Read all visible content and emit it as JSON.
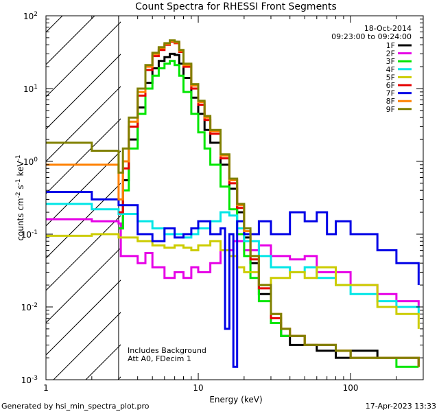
{
  "chart_data": {
    "type": "line",
    "title": "Count Spectra for RHESSI Front Segments",
    "xlabel": "Energy (keV)",
    "ylabel": "counts cm-2 s-1 keV-1",
    "xscale": "log",
    "yscale": "log",
    "xlim": [
      1,
      300
    ],
    "ylim": [
      0.001,
      100
    ],
    "x_ticks": [
      1,
      10,
      100
    ],
    "y_ticks": [
      0.001,
      0.01,
      0.1,
      1,
      10,
      100
    ],
    "y_tick_labels": [
      {
        "base": "10",
        "exp": "-3"
      },
      {
        "base": "10",
        "exp": "-2"
      },
      {
        "base": "10",
        "exp": "-1"
      },
      {
        "base": "10",
        "exp": "0"
      },
      {
        "base": "10",
        "exp": "1"
      },
      {
        "base": "10",
        "exp": "2"
      }
    ],
    "x_tick_labels": [
      "1",
      "10",
      "100"
    ],
    "date": "18-Oct-2014",
    "time_range": "09:23:00 to 09:24:00",
    "excluded_region_max_keV": 3,
    "annotations": [
      "Includes Background",
      "Att A0, FDecim 1"
    ],
    "footer_left": "Generated by hsi_min_spectra_plot.pro",
    "footer_right": "17-Apr-2023 13:33",
    "series": [
      {
        "name": "1F",
        "color": "#000000",
        "points": [
          [
            3.0,
            0.12
          ],
          [
            3.2,
            0.55
          ],
          [
            3.5,
            2.0
          ],
          [
            4.0,
            5.5
          ],
          [
            4.5,
            12
          ],
          [
            5.0,
            19
          ],
          [
            5.5,
            24
          ],
          [
            6.0,
            27
          ],
          [
            6.5,
            30
          ],
          [
            7.0,
            29
          ],
          [
            7.5,
            22
          ],
          [
            8.0,
            14
          ],
          [
            9.0,
            7.5
          ],
          [
            10.0,
            4.5
          ],
          [
            11.0,
            2.7
          ],
          [
            12.0,
            1.8
          ],
          [
            14.0,
            0.9
          ],
          [
            16.0,
            0.42
          ],
          [
            18.0,
            0.2
          ],
          [
            20.0,
            0.09
          ],
          [
            22.0,
            0.04
          ],
          [
            25.0,
            0.015
          ],
          [
            30.0,
            0.006
          ],
          [
            35.0,
            0.004
          ],
          [
            40.0,
            0.003
          ],
          [
            50.0,
            0.003
          ],
          [
            60.0,
            0.0025
          ],
          [
            80.0,
            0.002
          ],
          [
            100.0,
            0.0025
          ],
          [
            150.0,
            0.002
          ],
          [
            200.0,
            0.002
          ],
          [
            280.0,
            0.0015
          ]
        ]
      },
      {
        "name": "2F",
        "color": "#e600e6",
        "points": [
          [
            1.0,
            0.16
          ],
          [
            2.0,
            0.15
          ],
          [
            3.0,
            0.14
          ],
          [
            3.1,
            0.05
          ],
          [
            4.0,
            0.04
          ],
          [
            4.5,
            0.055
          ],
          [
            5.0,
            0.035
          ],
          [
            6.0,
            0.025
          ],
          [
            7.0,
            0.03
          ],
          [
            8.0,
            0.025
          ],
          [
            9.0,
            0.035
          ],
          [
            10.0,
            0.03
          ],
          [
            12.0,
            0.04
          ],
          [
            14.0,
            0.06
          ],
          [
            17.0,
            0.08
          ],
          [
            20.0,
            0.06
          ],
          [
            25.0,
            0.07
          ],
          [
            30.0,
            0.05
          ],
          [
            40.0,
            0.045
          ],
          [
            50.0,
            0.05
          ],
          [
            60.0,
            0.03
          ],
          [
            80.0,
            0.03
          ],
          [
            100.0,
            0.02
          ],
          [
            150.0,
            0.015
          ],
          [
            200.0,
            0.012
          ],
          [
            280.0,
            0.01
          ]
        ]
      },
      {
        "name": "3F",
        "color": "#00e600",
        "points": [
          [
            3.0,
            0.12
          ],
          [
            3.2,
            0.4
          ],
          [
            3.5,
            1.5
          ],
          [
            4.0,
            4.5
          ],
          [
            4.5,
            10
          ],
          [
            5.0,
            15
          ],
          [
            5.5,
            19
          ],
          [
            6.0,
            22
          ],
          [
            6.5,
            24
          ],
          [
            7.0,
            21
          ],
          [
            7.5,
            15
          ],
          [
            8.0,
            9
          ],
          [
            9.0,
            4.5
          ],
          [
            10.0,
            2.5
          ],
          [
            11.0,
            1.5
          ],
          [
            12.0,
            0.9
          ],
          [
            14.0,
            0.45
          ],
          [
            16.0,
            0.22
          ],
          [
            18.0,
            0.1
          ],
          [
            20.0,
            0.05
          ],
          [
            22.0,
            0.025
          ],
          [
            25.0,
            0.012
          ],
          [
            30.0,
            0.006
          ],
          [
            35.0,
            0.004
          ],
          [
            40.0,
            0.004
          ],
          [
            50.0,
            0.003
          ],
          [
            60.0,
            0.003
          ],
          [
            80.0,
            0.0025
          ],
          [
            100.0,
            0.002
          ],
          [
            150.0,
            0.002
          ],
          [
            200.0,
            0.0015
          ],
          [
            280.0,
            0.0015
          ]
        ]
      },
      {
        "name": "4F",
        "color": "#00e6e6",
        "points": [
          [
            1.0,
            0.26
          ],
          [
            2.0,
            0.22
          ],
          [
            3.0,
            0.19
          ],
          [
            4.0,
            0.15
          ],
          [
            5.0,
            0.12
          ],
          [
            6.0,
            0.1
          ],
          [
            7.0,
            0.1
          ],
          [
            8.0,
            0.09
          ],
          [
            9.0,
            0.1
          ],
          [
            10.0,
            0.12
          ],
          [
            12.0,
            0.15
          ],
          [
            14.0,
            0.2
          ],
          [
            16.0,
            0.18
          ],
          [
            18.0,
            0.12
          ],
          [
            20.0,
            0.08
          ],
          [
            25.0,
            0.05
          ],
          [
            30.0,
            0.035
          ],
          [
            40.0,
            0.03
          ],
          [
            50.0,
            0.035
          ],
          [
            60.0,
            0.025
          ],
          [
            80.0,
            0.02
          ],
          [
            100.0,
            0.015
          ],
          [
            150.0,
            0.012
          ],
          [
            200.0,
            0.01
          ],
          [
            280.0,
            0.008
          ]
        ]
      },
      {
        "name": "5F",
        "color": "#cccc00",
        "points": [
          [
            1.0,
            0.095
          ],
          [
            2.0,
            0.1
          ],
          [
            3.0,
            0.09
          ],
          [
            4.0,
            0.08
          ],
          [
            5.0,
            0.07
          ],
          [
            6.0,
            0.065
          ],
          [
            7.0,
            0.07
          ],
          [
            8.0,
            0.065
          ],
          [
            9.0,
            0.06
          ],
          [
            10.0,
            0.07
          ],
          [
            12.0,
            0.08
          ],
          [
            14.0,
            0.06
          ],
          [
            16.0,
            0.05
          ],
          [
            18.0,
            0.035
          ],
          [
            20.0,
            0.03
          ],
          [
            25.0,
            0.02
          ],
          [
            30.0,
            0.025
          ],
          [
            40.0,
            0.03
          ],
          [
            50.0,
            0.025
          ],
          [
            60.0,
            0.035
          ],
          [
            80.0,
            0.02
          ],
          [
            100.0,
            0.02
          ],
          [
            150.0,
            0.01
          ],
          [
            200.0,
            0.008
          ],
          [
            280.0,
            0.005
          ]
        ]
      },
      {
        "name": "6F",
        "color": "#e60000",
        "points": [
          [
            3.0,
            0.2
          ],
          [
            3.2,
            0.8
          ],
          [
            3.5,
            3.0
          ],
          [
            4.0,
            8
          ],
          [
            4.5,
            18
          ],
          [
            5.0,
            28
          ],
          [
            5.5,
            34
          ],
          [
            6.0,
            40
          ],
          [
            6.5,
            44
          ],
          [
            7.0,
            42
          ],
          [
            7.5,
            32
          ],
          [
            8.0,
            20
          ],
          [
            9.0,
            10
          ],
          [
            10.0,
            6
          ],
          [
            11.0,
            3.7
          ],
          [
            12.0,
            2.4
          ],
          [
            14.0,
            1.1
          ],
          [
            16.0,
            0.5
          ],
          [
            18.0,
            0.23
          ],
          [
            20.0,
            0.1
          ],
          [
            22.0,
            0.045
          ],
          [
            25.0,
            0.018
          ],
          [
            30.0,
            0.007
          ],
          [
            35.0,
            0.005
          ],
          [
            40.0,
            0.004
          ],
          [
            50.0,
            0.003
          ],
          [
            60.0,
            0.003
          ],
          [
            80.0,
            0.0025
          ],
          [
            100.0,
            0.002
          ],
          [
            150.0,
            0.002
          ],
          [
            200.0,
            0.002
          ],
          [
            280.0,
            0.0015
          ]
        ]
      },
      {
        "name": "7F",
        "color": "#0000e6",
        "points": [
          [
            1.0,
            0.38
          ],
          [
            2.0,
            0.3
          ],
          [
            3.0,
            0.25
          ],
          [
            4.0,
            0.1
          ],
          [
            5.0,
            0.08
          ],
          [
            6.0,
            0.12
          ],
          [
            7.0,
            0.09
          ],
          [
            8.0,
            0.1
          ],
          [
            9.0,
            0.12
          ],
          [
            10.0,
            0.15
          ],
          [
            12.0,
            0.1
          ],
          [
            14.0,
            0.12
          ],
          [
            15.0,
            0.005
          ],
          [
            16.0,
            0.1
          ],
          [
            17.0,
            0.0015
          ],
          [
            18.0,
            0.15
          ],
          [
            20.0,
            0.1
          ],
          [
            25.0,
            0.15
          ],
          [
            30.0,
            0.1
          ],
          [
            40.0,
            0.2
          ],
          [
            50.0,
            0.15
          ],
          [
            60.0,
            0.2
          ],
          [
            70.0,
            0.1
          ],
          [
            80.0,
            0.15
          ],
          [
            100.0,
            0.1
          ],
          [
            150.0,
            0.06
          ],
          [
            200.0,
            0.04
          ],
          [
            280.0,
            0.02
          ]
        ]
      },
      {
        "name": "8F",
        "color": "#ff8000",
        "points": [
          [
            1.0,
            0.9
          ],
          [
            2.0,
            0.9
          ],
          [
            3.0,
            0.3
          ],
          [
            3.2,
            1.0
          ],
          [
            3.5,
            3.5
          ],
          [
            4.0,
            9
          ],
          [
            4.5,
            20
          ],
          [
            5.0,
            30
          ],
          [
            5.5,
            36
          ],
          [
            6.0,
            41
          ],
          [
            6.5,
            45
          ],
          [
            7.0,
            43
          ],
          [
            7.5,
            33
          ],
          [
            8.0,
            21
          ],
          [
            9.0,
            11
          ],
          [
            10.0,
            6.5
          ],
          [
            11.0,
            4
          ],
          [
            12.0,
            2.6
          ],
          [
            14.0,
            1.2
          ],
          [
            16.0,
            0.55
          ],
          [
            18.0,
            0.25
          ],
          [
            20.0,
            0.11
          ],
          [
            22.0,
            0.05
          ],
          [
            25.0,
            0.02
          ],
          [
            30.0,
            0.008
          ],
          [
            35.0,
            0.005
          ],
          [
            40.0,
            0.004
          ],
          [
            50.0,
            0.003
          ],
          [
            60.0,
            0.003
          ],
          [
            80.0,
            0.0025
          ],
          [
            100.0,
            0.002
          ],
          [
            150.0,
            0.002
          ],
          [
            200.0,
            0.002
          ],
          [
            280.0,
            0.0015
          ]
        ]
      },
      {
        "name": "9F",
        "color": "#808000",
        "points": [
          [
            1.0,
            1.8
          ],
          [
            2.0,
            1.4
          ],
          [
            3.0,
            0.7
          ],
          [
            3.2,
            1.5
          ],
          [
            3.5,
            4.0
          ],
          [
            4.0,
            10
          ],
          [
            4.5,
            21
          ],
          [
            5.0,
            31
          ],
          [
            5.5,
            37
          ],
          [
            6.0,
            42
          ],
          [
            6.5,
            46
          ],
          [
            7.0,
            44
          ],
          [
            7.5,
            34
          ],
          [
            8.0,
            22
          ],
          [
            9.0,
            11.5
          ],
          [
            10.0,
            6.8
          ],
          [
            11.0,
            4.2
          ],
          [
            12.0,
            2.7
          ],
          [
            14.0,
            1.25
          ],
          [
            16.0,
            0.58
          ],
          [
            18.0,
            0.26
          ],
          [
            20.0,
            0.12
          ],
          [
            22.0,
            0.05
          ],
          [
            25.0,
            0.02
          ],
          [
            30.0,
            0.008
          ],
          [
            35.0,
            0.005
          ],
          [
            40.0,
            0.004
          ],
          [
            50.0,
            0.003
          ],
          [
            60.0,
            0.003
          ],
          [
            80.0,
            0.0025
          ],
          [
            100.0,
            0.002
          ],
          [
            150.0,
            0.002
          ],
          [
            200.0,
            0.002
          ],
          [
            280.0,
            0.0015
          ]
        ]
      }
    ]
  }
}
